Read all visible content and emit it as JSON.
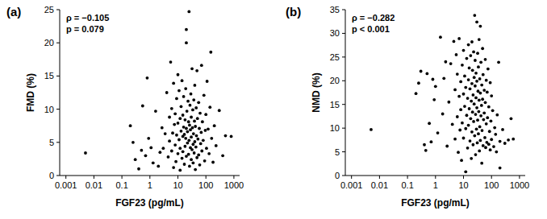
{
  "chart_data": [
    {
      "type": "scatter",
      "title": "(a)",
      "x_label": "FGF23 (pg/mL)",
      "y_label": "FMD (%)",
      "annotations": [
        "ρ = −0.105",
        "p = 0.079"
      ],
      "log": "x",
      "color": "#000000",
      "marker": "circle",
      "xlim": [
        0.0006,
        1600
      ],
      "xticks": [
        0.001,
        0.01,
        0.1,
        1,
        10,
        100,
        1000
      ],
      "ylim": [
        0,
        25
      ],
      "yticks": [
        0,
        5,
        10,
        15,
        20,
        25
      ],
      "x": [
        0.005,
        0.2,
        0.25,
        0.3,
        0.4,
        0.5,
        0.55,
        0.7,
        0.8,
        0.9,
        1.1,
        1.3,
        1.6,
        2,
        2.3,
        2.7,
        3,
        3.5,
        4,
        4.5,
        5,
        5,
        5.5,
        6,
        6,
        6.5,
        7,
        7,
        7.5,
        8,
        8,
        8.5,
        9,
        9,
        10,
        10,
        10,
        11,
        11,
        12,
        12,
        12,
        13,
        13,
        14,
        14,
        15,
        15,
        15,
        16,
        16,
        17,
        17,
        18,
        18,
        19,
        19,
        20,
        20,
        20,
        20,
        21,
        22,
        22,
        23,
        24,
        24,
        25,
        25,
        26,
        26,
        27,
        28,
        28,
        29,
        30,
        30,
        30,
        32,
        32,
        33,
        34,
        35,
        35,
        36,
        37,
        38,
        39,
        40,
        40,
        42,
        42,
        44,
        45,
        46,
        48,
        48,
        50,
        52,
        55,
        55,
        58,
        60,
        62,
        65,
        68,
        70,
        72,
        75,
        80,
        85,
        90,
        95,
        100,
        105,
        110,
        120,
        130,
        140,
        150,
        160,
        180,
        200,
        230,
        300,
        400,
        500,
        800
      ],
      "values": [
        3.4,
        7.5,
        5,
        2.4,
        1,
        3.8,
        10.5,
        3,
        14.7,
        5.6,
        4.2,
        1.9,
        9.7,
        1.4,
        3.5,
        7.2,
        4.1,
        6.3,
        12.5,
        2.8,
        8.8,
        5.2,
        17.1,
        3.7,
        10.1,
        6.4,
        1.2,
        13.9,
        7.7,
        4.6,
        9.3,
        2.1,
        11.6,
        6.1,
        15.2,
        3.3,
        7.9,
        5.4,
        12.8,
        0.8,
        8.6,
        4.1,
        10.4,
        6.7,
        2.6,
        14.3,
        5.9,
        9.1,
        3.6,
        7.3,
        11.9,
        1.7,
        6.2,
        8.4,
        4.4,
        13.1,
        5.6,
        22,
        20,
        7.1,
        2.9,
        9.7,
        4.9,
        6.6,
        11.2,
        3.2,
        8.1,
        24.7,
        5.3,
        7.6,
        1.4,
        10.6,
        4.2,
        6.9,
        12.3,
        2.4,
        8.8,
        5.8,
        16.1,
        3.9,
        7.2,
        9.9,
        4.7,
        1.9,
        6.3,
        11.4,
        3.4,
        8.2,
        5.1,
        13.6,
        0.9,
        7.4,
        4.3,
        10.2,
        6,
        2.7,
        15.8,
        8.6,
        5.5,
        3.1,
        11,
        7.1,
        1.6,
        9.4,
        4.8,
        6.5,
        16.6,
        3.7,
        8.1,
        5.3,
        12.1,
        2.2,
        6.8,
        9.2,
        4.1,
        14.2,
        7,
        3.3,
        10.3,
        18.6,
        5.6,
        2,
        7.5,
        4.5,
        9.8,
        3,
        6,
        5.9
      ]
    },
    {
      "type": "scatter",
      "title": "(b)",
      "x_label": "FGF23 (pg/mL)",
      "y_label": "NMD (%)",
      "annotations": [
        "ρ = −0.282",
        "p < 0.001"
      ],
      "log": "x",
      "color": "#000000",
      "marker": "circle",
      "xlim": [
        0.0006,
        1600
      ],
      "xticks": [
        0.001,
        0.01,
        0.1,
        1,
        10,
        100,
        1000
      ],
      "ylim": [
        0,
        35
      ],
      "yticks": [
        0,
        5,
        10,
        15,
        20,
        25,
        30,
        35
      ],
      "x": [
        0.005,
        0.2,
        0.25,
        0.3,
        0.4,
        0.45,
        0.5,
        0.6,
        0.7,
        0.8,
        0.9,
        1,
        1.2,
        1.5,
        1.8,
        2,
        2.3,
        2.6,
        3,
        3.5,
        4,
        4.5,
        5,
        5,
        5.5,
        6,
        6,
        6.5,
        7,
        7,
        7.5,
        8,
        8,
        8.5,
        9,
        9,
        10,
        10,
        10,
        11,
        11,
        12,
        12,
        12,
        13,
        13,
        14,
        14,
        15,
        15,
        15,
        16,
        16,
        17,
        17,
        18,
        18,
        19,
        19,
        20,
        20,
        20,
        21,
        21,
        22,
        22,
        23,
        23,
        24,
        24,
        25,
        25,
        26,
        26,
        27,
        27,
        28,
        28,
        29,
        30,
        30,
        30,
        31,
        32,
        32,
        33,
        34,
        34,
        35,
        36,
        36,
        37,
        38,
        38,
        40,
        40,
        40,
        42,
        42,
        44,
        45,
        45,
        46,
        48,
        48,
        50,
        50,
        52,
        55,
        55,
        58,
        60,
        60,
        62,
        65,
        65,
        68,
        70,
        72,
        75,
        80,
        80,
        85,
        90,
        90,
        95,
        100,
        100,
        110,
        120,
        130,
        140,
        150,
        160,
        180,
        200,
        200,
        250,
        300,
        400,
        500,
        600
      ],
      "values": [
        9.7,
        17.3,
        19.5,
        22,
        6.5,
        5.3,
        21.5,
        11,
        7.1,
        20.3,
        16,
        18.8,
        9,
        29.2,
        13,
        20.5,
        24,
        6.2,
        15.5,
        23.6,
        10.8,
        28.3,
        18.1,
        7.7,
        25.5,
        12.4,
        21.4,
        4.9,
        16.7,
        28.9,
        9.6,
        19.8,
        13.9,
        3.2,
        23.3,
        11.1,
        17.2,
        26.4,
        7.9,
        14.6,
        21,
        0.8,
        9.9,
        18.6,
        24.7,
        12.7,
        5.8,
        16.3,
        27.6,
        20.2,
        10.6,
        14.1,
        22.7,
        7.3,
        18.3,
        25.3,
        12,
        15.7,
        3.6,
        19.4,
        28.2,
        9.2,
        13.4,
        22.2,
        6.5,
        17,
        26.1,
        11.4,
        20.7,
        15.1,
        33.8,
        8.4,
        18.9,
        24.3,
        12.9,
        4.4,
        21.6,
        16.4,
        9.8,
        32.4,
        14.3,
        19.9,
        6.9,
        25.8,
        11.7,
        17.8,
        22.9,
        8.8,
        13.5,
        28.7,
        15.9,
        5.2,
        20.4,
        10.3,
        31.5,
        17.4,
        7.4,
        23.9,
        12.6,
        14.8,
        2.6,
        19.1,
        9.5,
        26.8,
        16.1,
        6.3,
        21.3,
        11.8,
        18,
        13.2,
        8,
        24.5,
        15.4,
        5.9,
        20.1,
        10.9,
        7,
        17.6,
        12.2,
        22.5,
        6.6,
        14.5,
        9.3,
        19.6,
        5.4,
        11.5,
        16.8,
        7.6,
        13.7,
        6.1,
        10.1,
        8.7,
        5,
        12.8,
        23.9,
        1.6,
        7.2,
        9.7,
        6.8,
        7.5,
        12,
        7.7
      ]
    }
  ]
}
